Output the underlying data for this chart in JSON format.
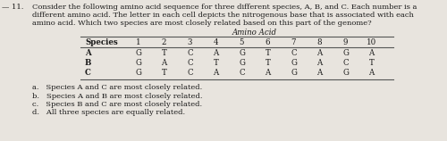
{
  "question_prefix": "— 11.",
  "question_text_line1": "Consider the following amino acid sequence for three different species, A, B, and C. Each number is a",
  "question_text_line2": "different amino acid. The letter in each cell depicts the nitrogenous base that is associated with each",
  "question_text_line3": "amino acid. Which two species are most closely related based on this part of the genome?",
  "table_header_center": "Amino Acid",
  "col_headers": [
    "Species",
    "1",
    "2",
    "3",
    "4",
    "5",
    "6",
    "7",
    "8",
    "9",
    "10"
  ],
  "rows": [
    [
      "A",
      "G",
      "T",
      "C",
      "A",
      "G",
      "T",
      "C",
      "A",
      "G",
      "A"
    ],
    [
      "B",
      "G",
      "A",
      "C",
      "T",
      "G",
      "T",
      "G",
      "A",
      "C",
      "T"
    ],
    [
      "C",
      "G",
      "T",
      "C",
      "A",
      "C",
      "A",
      "G",
      "A",
      "G",
      "A"
    ]
  ],
  "choices": [
    "a.   Species A and C are most closely related.",
    "b.   Species A and B are most closely related.",
    "c.   Species B and C are most closely related.",
    "d.   All three species are equally related."
  ],
  "background_color": "#e8e4de",
  "text_color": "#1a1a1a",
  "line_color": "#555555",
  "font_size_text": 6.0,
  "font_size_table": 6.2,
  "font_size_choices": 6.0
}
